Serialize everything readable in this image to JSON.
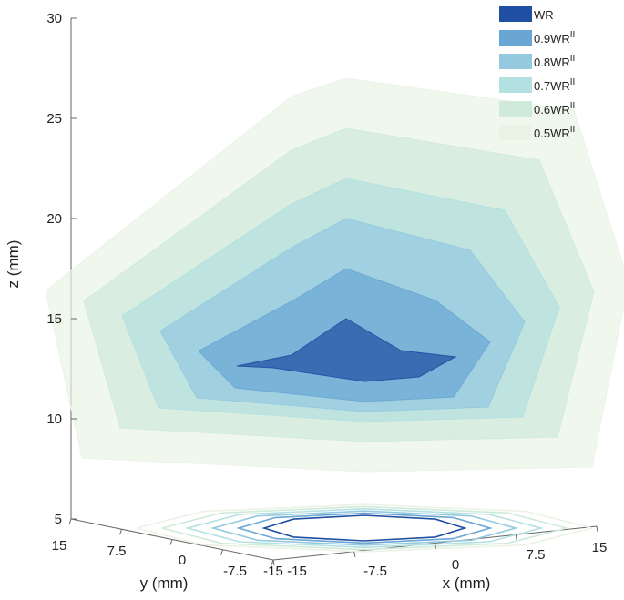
{
  "chart_data": {
    "type": "3d-surface",
    "title": "",
    "xlabel": "x (mm)",
    "ylabel": "y (mm)",
    "zlabel": "z (mm)",
    "x_ticks": [
      "-15",
      "-7.5",
      "0",
      "7.5",
      "15"
    ],
    "y_ticks": [
      "15",
      "7.5",
      "0",
      "-7.5",
      "-15"
    ],
    "z_ticks": [
      "5",
      "10",
      "15",
      "20",
      "25",
      "30"
    ],
    "xlim": [
      -15,
      15
    ],
    "ylim": [
      -15,
      15
    ],
    "zlim": [
      5,
      30
    ],
    "legend_position": "top-right",
    "series": [
      {
        "key": "wr",
        "label": "WR",
        "sup": "",
        "color": "#1f4fa3",
        "fraction": 1.0,
        "z_range": [
          13,
          15
        ]
      },
      {
        "key": "s09",
        "label": "0.9WR",
        "sup": "II",
        "color": "#6aa6d4",
        "fraction": 0.9,
        "z_range": [
          12,
          17.5
        ]
      },
      {
        "key": "s08",
        "label": "0.8WR",
        "sup": "II",
        "color": "#94c9e0",
        "fraction": 0.8,
        "z_range": [
          11.5,
          20
        ]
      },
      {
        "key": "s07",
        "label": "0.7WR",
        "sup": "II",
        "color": "#b3e0e0",
        "fraction": 0.7,
        "z_range": [
          11,
          22
        ]
      },
      {
        "key": "s06",
        "label": "0.6WR",
        "sup": "II",
        "color": "#cfeadb",
        "fraction": 0.6,
        "z_range": [
          10,
          24.5
        ]
      },
      {
        "key": "s05",
        "label": "0.5WR",
        "sup": "II",
        "color": "#eaf3e6",
        "fraction": 0.5,
        "z_range": [
          8.5,
          27
        ]
      }
    ]
  }
}
